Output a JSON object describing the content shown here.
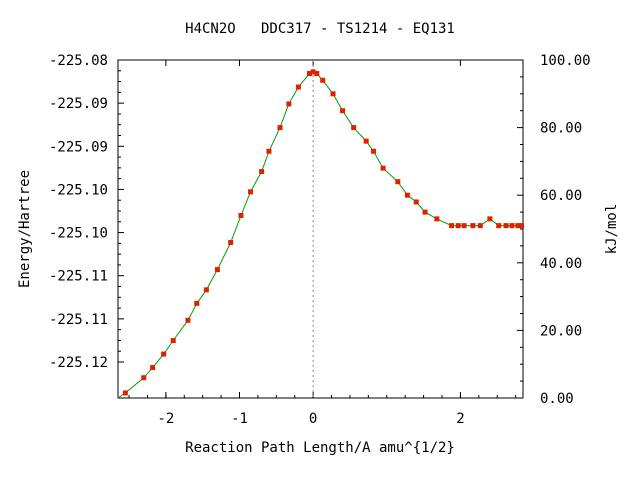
{
  "chart_data": {
    "type": "line",
    "title": "H4CN2O   DDC317 - TS1214 - EQ131",
    "xlabel": "Reaction Path Length/A amu^{1/2}",
    "ylabel": "Energy/Hartree",
    "y2label": "kJ/mol",
    "xlim": [
      -2.65,
      2.85
    ],
    "ylim_kj": [
      0,
      100
    ],
    "x_ticks": [
      -2,
      -1,
      0,
      2
    ],
    "x_tick_labels": [
      "-2",
      "-1",
      "0",
      "2"
    ],
    "y_tick_labels": [
      "-225.08",
      "-225.09",
      "-225.09",
      "-225.10",
      "-225.10",
      "-225.11",
      "-225.11",
      "-225.12"
    ],
    "y2_ticks": [
      0,
      20,
      40,
      60,
      80,
      100
    ],
    "y2_tick_labels": [
      "0.00",
      "20.00",
      "40.00",
      "60.00",
      "80.00",
      "100.00"
    ],
    "ts_position": 0,
    "series": [
      {
        "line_color": "#00a000",
        "marker_color": "#dd2200",
        "points": [
          [
            -2.55,
            1.5
          ],
          [
            -2.3,
            6.0
          ],
          [
            -2.18,
            9.0
          ],
          [
            -2.03,
            13.0
          ],
          [
            -1.9,
            17.0
          ],
          [
            -1.7,
            23.0
          ],
          [
            -1.58,
            28.0
          ],
          [
            -1.45,
            32.0
          ],
          [
            -1.3,
            38.0
          ],
          [
            -1.12,
            46.0
          ],
          [
            -0.98,
            54.0
          ],
          [
            -0.85,
            61.0
          ],
          [
            -0.7,
            67.0
          ],
          [
            -0.6,
            73.0
          ],
          [
            -0.45,
            80.0
          ],
          [
            -0.33,
            87.0
          ],
          [
            -0.2,
            92.0
          ],
          [
            -0.05,
            96.0
          ],
          [
            0.0,
            96.5
          ],
          [
            0.05,
            96.0
          ],
          [
            0.13,
            94.0
          ],
          [
            0.27,
            90.0
          ],
          [
            0.4,
            85.0
          ],
          [
            0.55,
            80.0
          ],
          [
            0.72,
            76.0
          ],
          [
            0.82,
            73.0
          ],
          [
            0.95,
            68.0
          ],
          [
            1.15,
            64.0
          ],
          [
            1.28,
            60.0
          ],
          [
            1.4,
            58.0
          ],
          [
            1.52,
            55.0
          ],
          [
            1.68,
            53.0
          ],
          [
            1.88,
            51.0
          ],
          [
            1.97,
            51.0
          ],
          [
            2.05,
            51.0
          ],
          [
            2.17,
            51.0
          ],
          [
            2.27,
            51.0
          ],
          [
            2.4,
            53.0
          ],
          [
            2.52,
            51.0
          ],
          [
            2.62,
            51.0
          ],
          [
            2.7,
            51.0
          ],
          [
            2.78,
            51.0
          ],
          [
            2.83,
            51.0
          ]
        ]
      }
    ]
  }
}
